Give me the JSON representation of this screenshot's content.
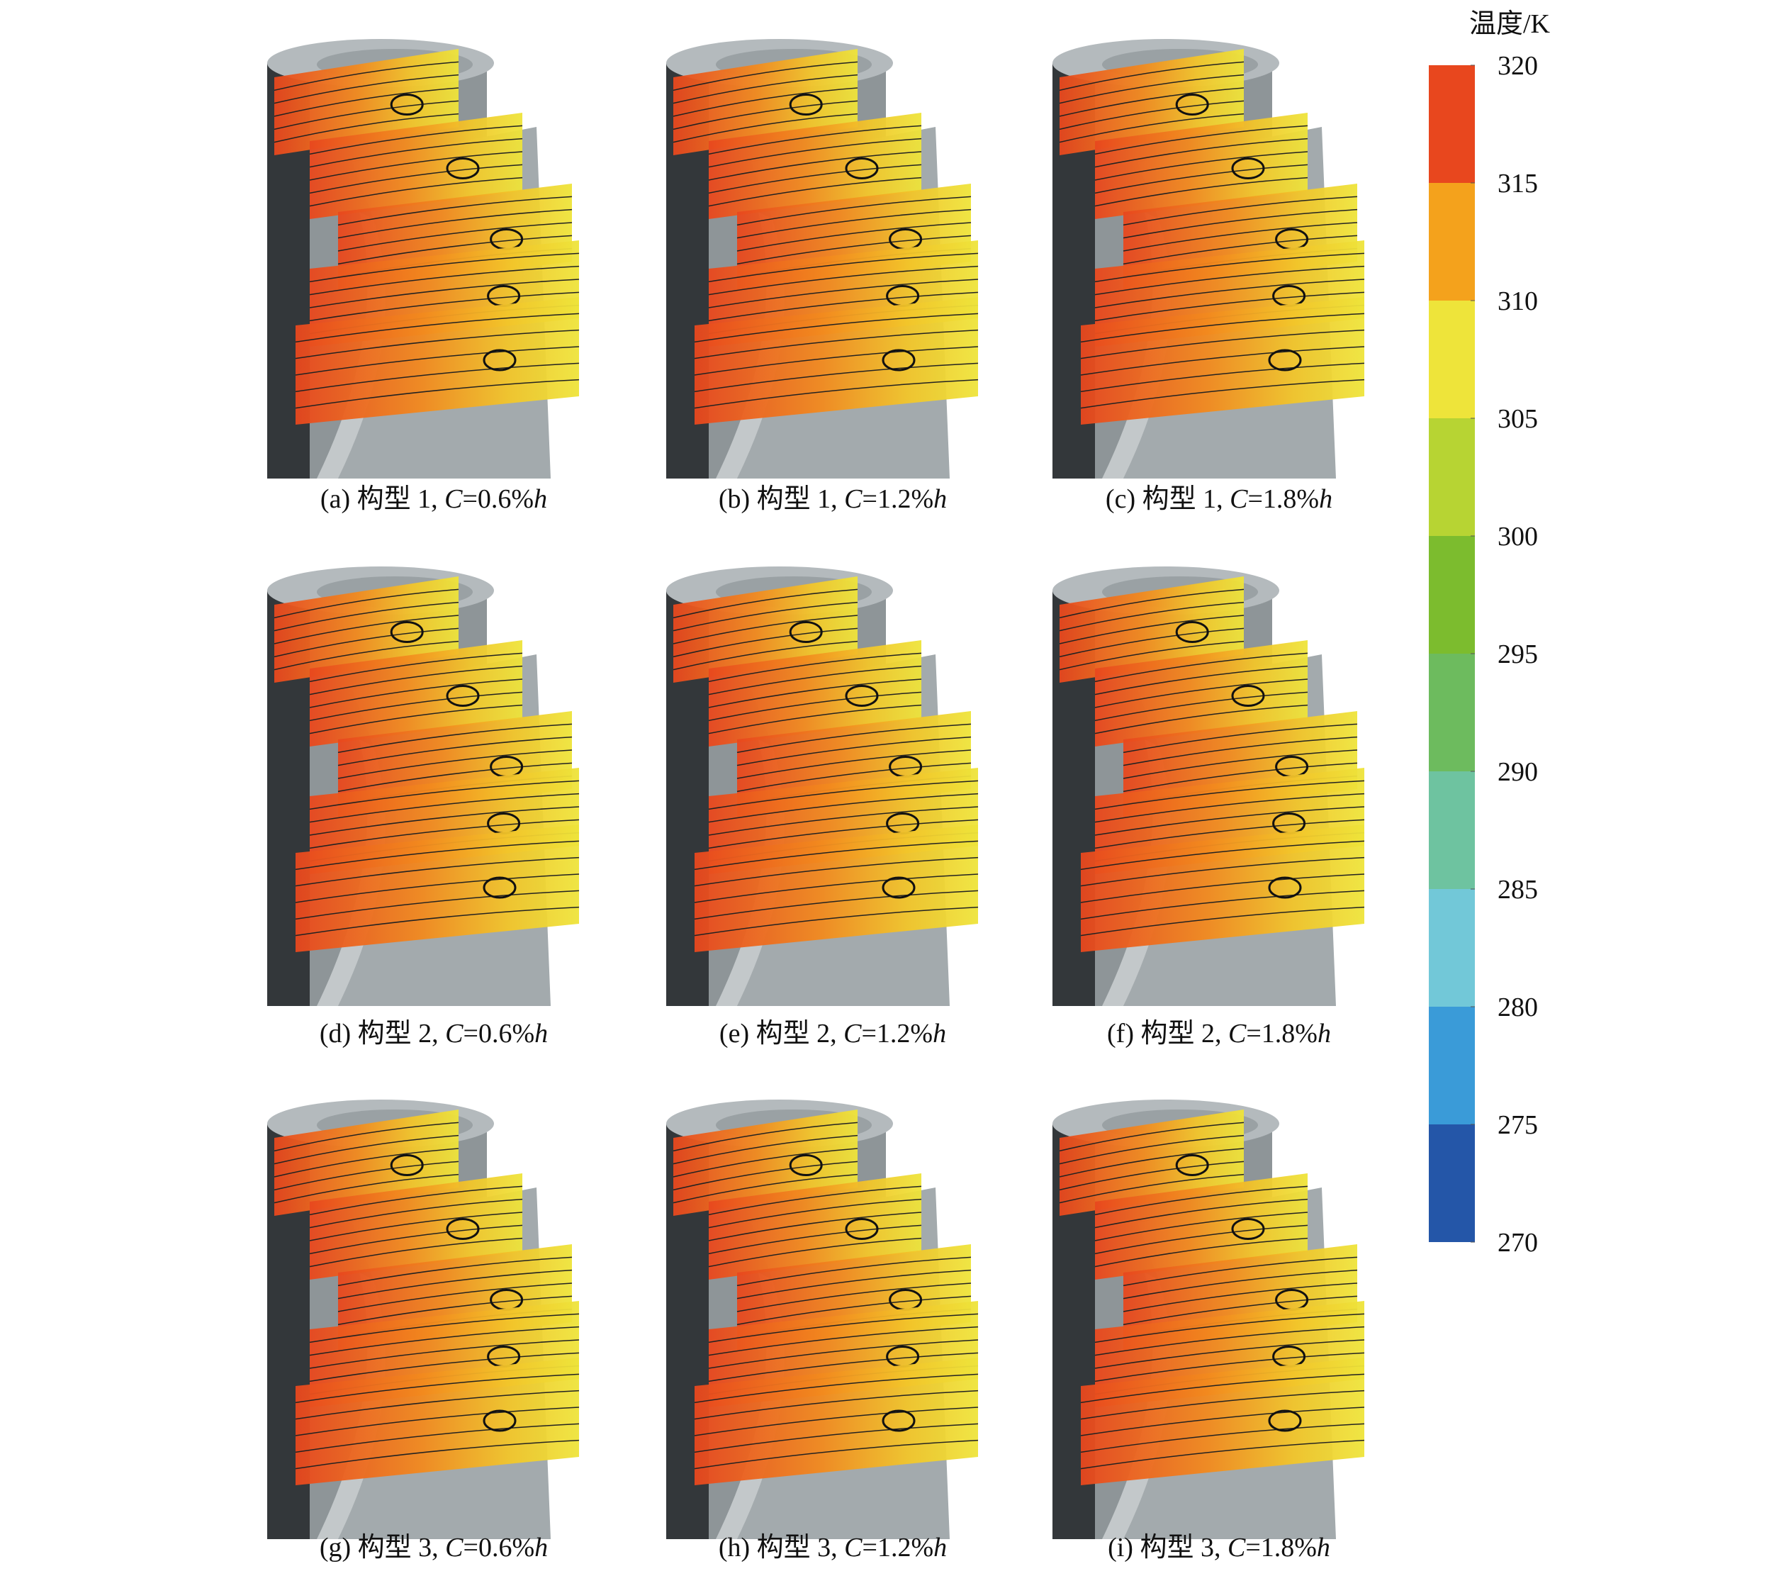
{
  "panels": [
    {
      "caption": [
        "(a) 构型 1, ",
        "C",
        "=0.6%",
        "h"
      ]
    },
    {
      "caption": [
        "(b) 构型 1, ",
        "C",
        "=1.2%",
        "h"
      ]
    },
    {
      "caption": [
        "(c) 构型 1, ",
        "C",
        "=1.8%",
        "h"
      ]
    },
    {
      "caption": [
        "(d) 构型 2, ",
        "C",
        "=0.6%",
        "h"
      ]
    },
    {
      "caption": [
        "(e) 构型 2, ",
        "C",
        "=1.2%",
        "h"
      ]
    },
    {
      "caption": [
        "(f) 构型 2, ",
        "C",
        "=1.8%",
        "h"
      ]
    },
    {
      "caption": [
        "(g) 构型 3, ",
        "C",
        "=0.6%",
        "h"
      ]
    },
    {
      "caption": [
        "(h) 构型 3, ",
        "C",
        "=1.2%",
        "h"
      ]
    },
    {
      "caption": [
        "(i) 构型 3, ",
        "C",
        "=1.8%",
        "h"
      ]
    }
  ],
  "colorbar": {
    "title": "温度/K",
    "ticks": [
      320,
      315,
      310,
      305,
      300,
      295,
      290,
      285,
      280,
      275,
      270
    ],
    "colors": [
      "#e8471e",
      "#f4a21c",
      "#eee43a",
      "#b7d433",
      "#7cbc2e",
      "#6dbb5e",
      "#6ec3a0",
      "#72c8d8",
      "#3a9bd8",
      "#2456a8"
    ]
  }
}
